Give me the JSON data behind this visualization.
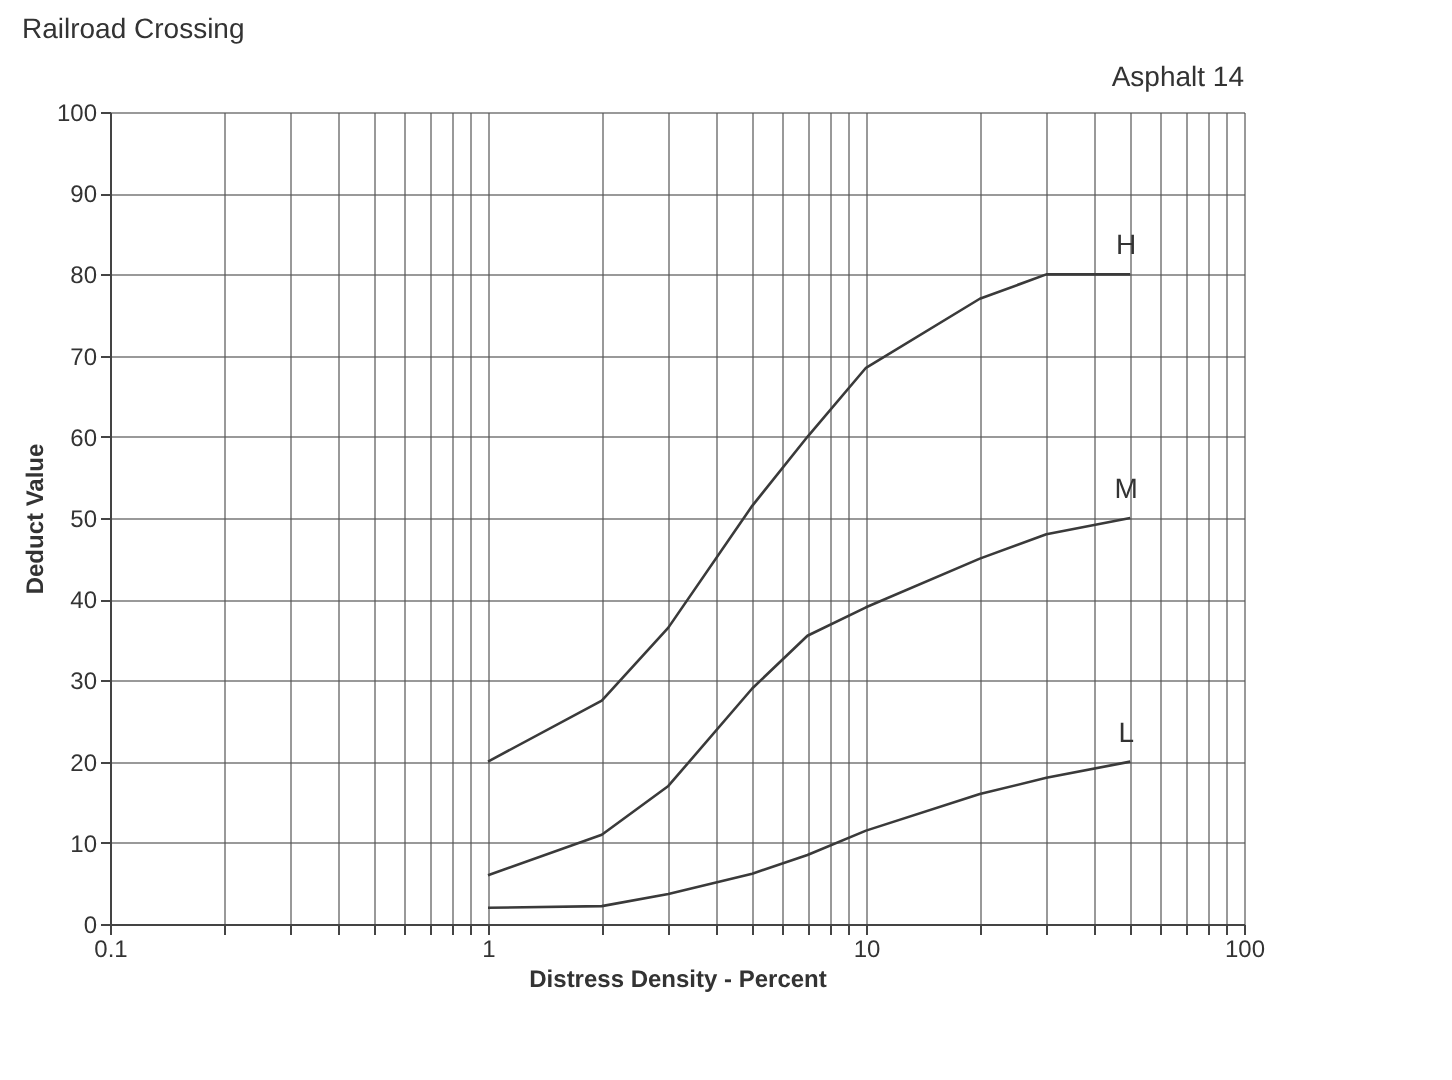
{
  "chart_data": {
    "type": "line",
    "title": "Railroad Crossing",
    "annotations": [
      "Asphalt 14"
    ],
    "xlabel": "Distress Density - Percent",
    "ylabel": "Deduct Value",
    "log": "x",
    "grid": true,
    "legend": false,
    "marker": "none",
    "line_style": "solid",
    "xlim": [
      0.1,
      100
    ],
    "ylim": [
      0,
      100
    ],
    "xticks": [
      0.1,
      {
        "value": 0.2,
        "label": null
      },
      {
        "value": 0.3,
        "label": null
      },
      {
        "value": 0.4,
        "label": null
      },
      {
        "value": 0.5,
        "label": null
      },
      {
        "value": 0.6,
        "label": null
      },
      {
        "value": 0.7,
        "label": null
      },
      {
        "value": 0.8,
        "label": null
      },
      {
        "value": 0.9,
        "label": null
      },
      1,
      {
        "value": 2,
        "label": null
      },
      {
        "value": 3,
        "label": null
      },
      {
        "value": 4,
        "label": null
      },
      {
        "value": 5,
        "label": null
      },
      {
        "value": 6,
        "label": null
      },
      {
        "value": 7,
        "label": null
      },
      {
        "value": 8,
        "label": null
      },
      {
        "value": 9,
        "label": null
      },
      10,
      {
        "value": 20,
        "label": null
      },
      {
        "value": 30,
        "label": null
      },
      {
        "value": 40,
        "label": null
      },
      {
        "value": 50,
        "label": null
      },
      {
        "value": 60,
        "label": null
      },
      {
        "value": 70,
        "label": null
      },
      {
        "value": 80,
        "label": null
      },
      {
        "value": 90,
        "label": null
      },
      100
    ],
    "yticks": [
      0,
      10,
      20,
      30,
      40,
      50,
      60,
      70,
      80,
      90,
      100
    ],
    "x": [
      1,
      2,
      3,
      5,
      7,
      10,
      20,
      30,
      50
    ],
    "series": [
      {
        "name": "H",
        "color": "#3a3a3a",
        "values": [
          20,
          27.5,
          36.5,
          51.5,
          60,
          68.5,
          77,
          80,
          80
        ]
      },
      {
        "name": "M",
        "color": "#3a3a3a",
        "values": [
          6,
          11,
          17,
          29,
          35.5,
          39,
          45,
          48,
          50
        ]
      },
      {
        "name": "L",
        "color": "#3a3a3a",
        "values": [
          2,
          2.2,
          3.7,
          6.2,
          8.5,
          11.5,
          16,
          18,
          20
        ]
      }
    ]
  }
}
